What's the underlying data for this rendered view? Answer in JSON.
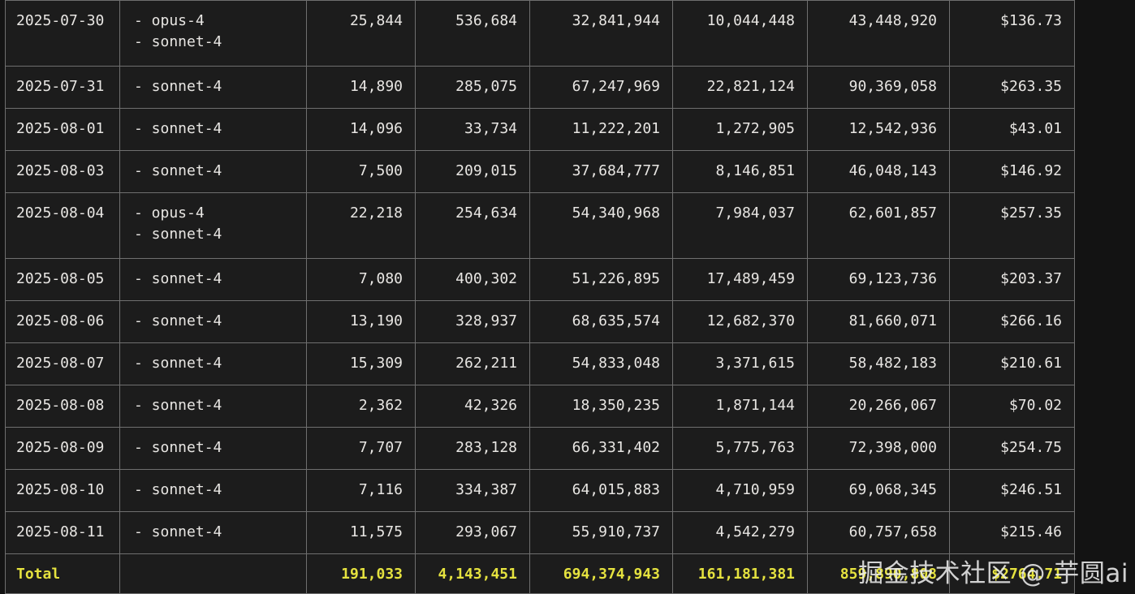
{
  "table": {
    "rows": [
      {
        "date": "2025-07-30",
        "models": [
          "- opus-4",
          "- sonnet-4"
        ],
        "input": "25,844",
        "output": "536,684",
        "cache_create": "32,841,944",
        "cache_read": "10,044,448",
        "total_tokens": "43,448,920",
        "cost": "$136.73"
      },
      {
        "date": "2025-07-31",
        "models": [
          "- sonnet-4"
        ],
        "input": "14,890",
        "output": "285,075",
        "cache_create": "67,247,969",
        "cache_read": "22,821,124",
        "total_tokens": "90,369,058",
        "cost": "$263.35"
      },
      {
        "date": "2025-08-01",
        "models": [
          "- sonnet-4"
        ],
        "input": "14,096",
        "output": "33,734",
        "cache_create": "11,222,201",
        "cache_read": "1,272,905",
        "total_tokens": "12,542,936",
        "cost": "$43.01"
      },
      {
        "date": "2025-08-03",
        "models": [
          "- sonnet-4"
        ],
        "input": "7,500",
        "output": "209,015",
        "cache_create": "37,684,777",
        "cache_read": "8,146,851",
        "total_tokens": "46,048,143",
        "cost": "$146.92"
      },
      {
        "date": "2025-08-04",
        "models": [
          "- opus-4",
          "- sonnet-4"
        ],
        "input": "22,218",
        "output": "254,634",
        "cache_create": "54,340,968",
        "cache_read": "7,984,037",
        "total_tokens": "62,601,857",
        "cost": "$257.35"
      },
      {
        "date": "2025-08-05",
        "models": [
          "- sonnet-4"
        ],
        "input": "7,080",
        "output": "400,302",
        "cache_create": "51,226,895",
        "cache_read": "17,489,459",
        "total_tokens": "69,123,736",
        "cost": "$203.37"
      },
      {
        "date": "2025-08-06",
        "models": [
          "- sonnet-4"
        ],
        "input": "13,190",
        "output": "328,937",
        "cache_create": "68,635,574",
        "cache_read": "12,682,370",
        "total_tokens": "81,660,071",
        "cost": "$266.16"
      },
      {
        "date": "2025-08-07",
        "models": [
          "- sonnet-4"
        ],
        "input": "15,309",
        "output": "262,211",
        "cache_create": "54,833,048",
        "cache_read": "3,371,615",
        "total_tokens": "58,482,183",
        "cost": "$210.61"
      },
      {
        "date": "2025-08-08",
        "models": [
          "- sonnet-4"
        ],
        "input": "2,362",
        "output": "42,326",
        "cache_create": "18,350,235",
        "cache_read": "1,871,144",
        "total_tokens": "20,266,067",
        "cost": "$70.02"
      },
      {
        "date": "2025-08-09",
        "models": [
          "- sonnet-4"
        ],
        "input": "7,707",
        "output": "283,128",
        "cache_create": "66,331,402",
        "cache_read": "5,775,763",
        "total_tokens": "72,398,000",
        "cost": "$254.75"
      },
      {
        "date": "2025-08-10",
        "models": [
          "- sonnet-4"
        ],
        "input": "7,116",
        "output": "334,387",
        "cache_create": "64,015,883",
        "cache_read": "4,710,959",
        "total_tokens": "69,068,345",
        "cost": "$246.51"
      },
      {
        "date": "2025-08-11",
        "models": [
          "- sonnet-4"
        ],
        "input": "11,575",
        "output": "293,067",
        "cache_create": "55,910,737",
        "cache_read": "4,542,279",
        "total_tokens": "60,757,658",
        "cost": "$215.46"
      }
    ],
    "total": {
      "label": "Total",
      "input": "191,033",
      "output": "4,143,451",
      "cache_create": "694,374,943",
      "cache_read": "161,181,381",
      "total_tokens": "859,890,808",
      "cost": "$2764.71"
    }
  },
  "watermark": {
    "text": "掘金技术社区 @ 芋圆ai"
  },
  "colors": {
    "background": "#131313",
    "cell_background": "#1c1c1c",
    "border": "#6f6f6f",
    "text": "#e8e6e3",
    "total_accent": "#e5e23f"
  }
}
